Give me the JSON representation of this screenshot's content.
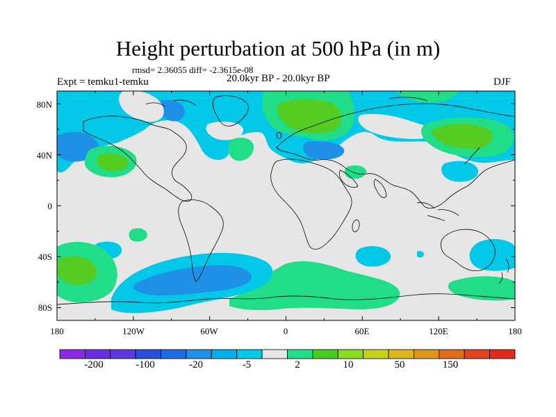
{
  "title": "Height perturbation at 500 hPa (in m)",
  "stats": "rmsd= 2.36055 diff= -2.3615e-08",
  "left_label": "Expt = temku1-temku",
  "center_label": "20.0kyr BP - 20.0kyr BP",
  "right_label": "DJF",
  "lat_labels": [
    "80N",
    "40N",
    "0",
    "40S",
    "80S"
  ],
  "lon_labels": [
    "180",
    "120W",
    "60W",
    "0",
    "60E",
    "120E",
    "180"
  ],
  "colorbar": {
    "labels": [
      "-200",
      "-100",
      "-20",
      "-5",
      "2",
      "10",
      "50",
      "150"
    ],
    "colors": [
      "#8a2be2",
      "#6a2ee0",
      "#5a3ae0",
      "#2a4fd8",
      "#1e6ee0",
      "#1e90e6",
      "#00aee8",
      "#00c8e6",
      "#e6e6e6",
      "#22dd88",
      "#44cc22",
      "#88dd22",
      "#c8d21e",
      "#dcb81e",
      "#dc961e",
      "#dc6e1e",
      "#e0441e",
      "#e02a1e"
    ]
  },
  "map_colors": {
    "background": "#e6e6e6",
    "light_positive": "#22dd88",
    "positive": "#55cc22",
    "light_negative": "#00c8e6",
    "negative": "#1e90e6"
  }
}
